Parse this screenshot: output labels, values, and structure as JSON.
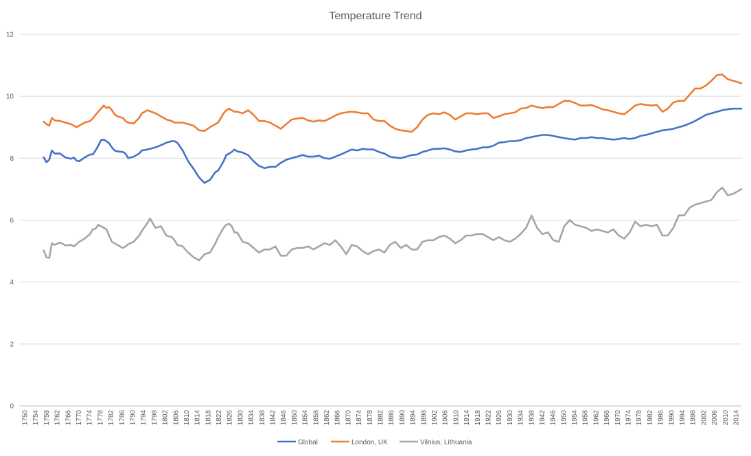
{
  "chart_data": {
    "type": "line",
    "title": "Temperature Trend",
    "xlabel": "",
    "ylabel": "",
    "ylim": [
      0,
      12
    ],
    "yticks": [
      0,
      2,
      4,
      6,
      8,
      10,
      12
    ],
    "xlim": [
      1750,
      2015
    ],
    "xtick_labels": [
      "1750",
      "1754",
      "1758",
      "1762",
      "1766",
      "1770",
      "1774",
      "1778",
      "1782",
      "1786",
      "1790",
      "1794",
      "1798",
      "1802",
      "1806",
      "1810",
      "1814",
      "1818",
      "1822",
      "1826",
      "1830",
      "1834",
      "1838",
      "1842",
      "1846",
      "1850",
      "1854",
      "1858",
      "1862",
      "1866",
      "1870",
      "1874",
      "1878",
      "1882",
      "1886",
      "1890",
      "1894",
      "1898",
      "1902",
      "1906",
      "1910",
      "1914",
      "1918",
      "1922",
      "1926",
      "1930",
      "1934",
      "1938",
      "1942",
      "1946",
      "1950",
      "1954",
      "1958",
      "1962",
      "1966",
      "1970",
      "1974",
      "1978",
      "1982",
      "1986",
      "1990",
      "1994",
      "1998",
      "2002",
      "2006",
      "2010",
      "2014"
    ],
    "grid": "horizontal",
    "legend": "bottom",
    "series": [
      {
        "name": "Global",
        "color": "#4472C4",
        "x": [
          1759,
          1760,
          1761,
          1762,
          1763,
          1765,
          1767,
          1769,
          1770,
          1771,
          1772,
          1774,
          1776,
          1777,
          1778,
          1779,
          1780,
          1781,
          1782,
          1783,
          1784,
          1785,
          1786,
          1788,
          1789,
          1790,
          1792,
          1794,
          1795,
          1797,
          1800,
          1802,
          1804,
          1806,
          1807,
          1808,
          1810,
          1812,
          1814,
          1816,
          1818,
          1820,
          1822,
          1823,
          1824,
          1825,
          1826,
          1827,
          1828,
          1829,
          1830,
          1832,
          1834,
          1836,
          1838,
          1840,
          1842,
          1844,
          1846,
          1848,
          1850,
          1852,
          1854,
          1856,
          1858,
          1860,
          1862,
          1864,
          1866,
          1868,
          1870,
          1872,
          1874,
          1876,
          1878,
          1880,
          1882,
          1884,
          1886,
          1888,
          1890,
          1892,
          1894,
          1896,
          1898,
          1900,
          1902,
          1904,
          1906,
          1908,
          1910,
          1912,
          1914,
          1916,
          1918,
          1920,
          1922,
          1924,
          1926,
          1928,
          1930,
          1932,
          1934,
          1936,
          1938,
          1940,
          1942,
          1944,
          1946,
          1948,
          1950,
          1952,
          1954,
          1956,
          1958,
          1960,
          1962,
          1964,
          1966,
          1968,
          1970,
          1972,
          1974,
          1976,
          1978,
          1980,
          1982,
          1984,
          1986,
          1988,
          1990,
          1992,
          1994,
          1996,
          1998,
          2000,
          2002,
          2004,
          2006,
          2008,
          2010,
          2012,
          2015
        ],
        "values": [
          8.03,
          7.87,
          7.95,
          8.25,
          8.15,
          8.15,
          8.02,
          7.98,
          8.02,
          7.92,
          7.9,
          8.02,
          8.12,
          8.12,
          8.25,
          8.4,
          8.58,
          8.6,
          8.55,
          8.48,
          8.35,
          8.25,
          8.22,
          8.2,
          8.15,
          8.0,
          8.05,
          8.15,
          8.25,
          8.28,
          8.35,
          8.42,
          8.5,
          8.55,
          8.55,
          8.5,
          8.25,
          7.9,
          7.65,
          7.38,
          7.2,
          7.3,
          7.55,
          7.6,
          7.75,
          7.9,
          8.1,
          8.15,
          8.2,
          8.28,
          8.22,
          8.18,
          8.1,
          7.9,
          7.75,
          7.68,
          7.72,
          7.72,
          7.85,
          7.95,
          8.0,
          8.05,
          8.1,
          8.05,
          8.05,
          8.08,
          8.0,
          7.98,
          8.05,
          8.12,
          8.2,
          8.28,
          8.25,
          8.3,
          8.28,
          8.28,
          8.2,
          8.15,
          8.05,
          8.02,
          8.0,
          8.05,
          8.1,
          8.12,
          8.2,
          8.25,
          8.3,
          8.3,
          8.32,
          8.28,
          8.22,
          8.2,
          8.25,
          8.28,
          8.3,
          8.35,
          8.35,
          8.4,
          8.5,
          8.52,
          8.55,
          8.55,
          8.58,
          8.65,
          8.68,
          8.72,
          8.75,
          8.75,
          8.72,
          8.68,
          8.65,
          8.62,
          8.6,
          8.65,
          8.65,
          8.68,
          8.65,
          8.65,
          8.62,
          8.6,
          8.62,
          8.65,
          8.62,
          8.65,
          8.72,
          8.75,
          8.8,
          8.85,
          8.9,
          8.92,
          8.95,
          9.0,
          9.05,
          9.12,
          9.2,
          9.3,
          9.4,
          9.45,
          9.5,
          9.55,
          9.58,
          9.6,
          9.6
        ]
      },
      {
        "name": "London, UK",
        "color": "#ED7D31",
        "x": [
          1759,
          1760,
          1761,
          1762,
          1763,
          1765,
          1767,
          1769,
          1770,
          1771,
          1772,
          1774,
          1776,
          1777,
          1778,
          1779,
          1780,
          1781,
          1782,
          1783,
          1784,
          1785,
          1786,
          1788,
          1789,
          1790,
          1792,
          1794,
          1795,
          1797,
          1800,
          1802,
          1804,
          1806,
          1807,
          1808,
          1810,
          1812,
          1814,
          1816,
          1818,
          1820,
          1822,
          1823,
          1824,
          1825,
          1826,
          1827,
          1828,
          1829,
          1830,
          1832,
          1834,
          1836,
          1838,
          1840,
          1842,
          1844,
          1846,
          1848,
          1850,
          1852,
          1854,
          1856,
          1858,
          1860,
          1862,
          1864,
          1866,
          1868,
          1870,
          1872,
          1874,
          1876,
          1878,
          1880,
          1882,
          1884,
          1886,
          1888,
          1890,
          1892,
          1894,
          1896,
          1898,
          1900,
          1902,
          1904,
          1906,
          1908,
          1910,
          1912,
          1914,
          1916,
          1918,
          1920,
          1922,
          1924,
          1926,
          1928,
          1930,
          1932,
          1934,
          1936,
          1938,
          1940,
          1942,
          1944,
          1946,
          1948,
          1950,
          1952,
          1954,
          1956,
          1958,
          1960,
          1962,
          1964,
          1966,
          1968,
          1970,
          1972,
          1974,
          1976,
          1978,
          1980,
          1982,
          1984,
          1986,
          1988,
          1990,
          1992,
          1994,
          1996,
          1998,
          2000,
          2002,
          2004,
          2006,
          2008,
          2010,
          2012,
          2015
        ],
        "values": [
          9.18,
          9.1,
          9.05,
          9.3,
          9.22,
          9.2,
          9.15,
          9.1,
          9.05,
          9.0,
          9.05,
          9.15,
          9.2,
          9.28,
          9.4,
          9.5,
          9.6,
          9.7,
          9.62,
          9.65,
          9.55,
          9.42,
          9.35,
          9.3,
          9.2,
          9.15,
          9.12,
          9.3,
          9.45,
          9.55,
          9.45,
          9.35,
          9.25,
          9.2,
          9.15,
          9.15,
          9.15,
          9.1,
          9.05,
          8.9,
          8.88,
          9.0,
          9.1,
          9.15,
          9.3,
          9.45,
          9.55,
          9.6,
          9.55,
          9.5,
          9.5,
          9.45,
          9.55,
          9.4,
          9.2,
          9.2,
          9.15,
          9.05,
          8.95,
          9.1,
          9.25,
          9.28,
          9.3,
          9.22,
          9.18,
          9.22,
          9.2,
          9.28,
          9.38,
          9.45,
          9.48,
          9.5,
          9.48,
          9.45,
          9.45,
          9.25,
          9.2,
          9.2,
          9.05,
          8.95,
          8.9,
          8.88,
          8.85,
          9.0,
          9.25,
          9.4,
          9.45,
          9.42,
          9.48,
          9.4,
          9.25,
          9.35,
          9.45,
          9.45,
          9.42,
          9.45,
          9.45,
          9.3,
          9.35,
          9.42,
          9.45,
          9.48,
          9.6,
          9.62,
          9.7,
          9.65,
          9.62,
          9.65,
          9.65,
          9.75,
          9.85,
          9.85,
          9.78,
          9.7,
          9.7,
          9.72,
          9.65,
          9.58,
          9.55,
          9.5,
          9.45,
          9.42,
          9.55,
          9.7,
          9.75,
          9.72,
          9.7,
          9.72,
          9.5,
          9.6,
          9.8,
          9.85,
          9.85,
          10.05,
          10.25,
          10.25,
          10.35,
          10.5,
          10.68,
          10.7,
          10.55,
          10.5,
          10.42
        ]
      },
      {
        "name": "Vilnius, Lithuania",
        "color": "#A5A5A5",
        "x": [
          1759,
          1760,
          1761,
          1762,
          1763,
          1765,
          1767,
          1769,
          1770,
          1771,
          1772,
          1774,
          1776,
          1777,
          1778,
          1779,
          1780,
          1781,
          1782,
          1783,
          1784,
          1785,
          1786,
          1788,
          1789,
          1790,
          1792,
          1794,
          1795,
          1797,
          1798,
          1800,
          1802,
          1804,
          1806,
          1807,
          1808,
          1810,
          1812,
          1814,
          1816,
          1818,
          1820,
          1822,
          1823,
          1824,
          1825,
          1826,
          1827,
          1828,
          1829,
          1830,
          1832,
          1834,
          1836,
          1838,
          1840,
          1842,
          1844,
          1846,
          1848,
          1850,
          1852,
          1854,
          1856,
          1858,
          1860,
          1862,
          1864,
          1866,
          1868,
          1870,
          1872,
          1874,
          1876,
          1878,
          1880,
          1882,
          1884,
          1886,
          1888,
          1890,
          1892,
          1894,
          1896,
          1898,
          1900,
          1902,
          1904,
          1906,
          1908,
          1910,
          1912,
          1914,
          1916,
          1918,
          1920,
          1922,
          1924,
          1926,
          1928,
          1930,
          1932,
          1934,
          1936,
          1938,
          1940,
          1942,
          1944,
          1946,
          1948,
          1950,
          1952,
          1954,
          1956,
          1958,
          1960,
          1962,
          1964,
          1966,
          1968,
          1970,
          1972,
          1974,
          1976,
          1978,
          1980,
          1982,
          1984,
          1986,
          1988,
          1990,
          1992,
          1994,
          1996,
          1998,
          2000,
          2002,
          2004,
          2006,
          2008,
          2010,
          2012,
          2015
        ],
        "values": [
          5.02,
          4.8,
          4.78,
          5.25,
          5.2,
          5.28,
          5.18,
          5.2,
          5.15,
          5.22,
          5.3,
          5.4,
          5.55,
          5.7,
          5.72,
          5.85,
          5.8,
          5.75,
          5.7,
          5.5,
          5.3,
          5.25,
          5.2,
          5.1,
          5.15,
          5.22,
          5.3,
          5.5,
          5.65,
          5.9,
          6.05,
          5.75,
          5.8,
          5.5,
          5.45,
          5.35,
          5.2,
          5.15,
          4.95,
          4.8,
          4.7,
          4.9,
          4.95,
          5.25,
          5.45,
          5.6,
          5.75,
          5.85,
          5.88,
          5.8,
          5.6,
          5.6,
          5.3,
          5.25,
          5.1,
          4.95,
          5.05,
          5.05,
          5.15,
          4.85,
          4.85,
          5.05,
          5.1,
          5.1,
          5.15,
          5.05,
          5.15,
          5.25,
          5.2,
          5.35,
          5.15,
          4.9,
          5.2,
          5.15,
          5.0,
          4.9,
          5.0,
          5.05,
          4.95,
          5.2,
          5.3,
          5.1,
          5.2,
          5.05,
          5.05,
          5.3,
          5.35,
          5.35,
          5.45,
          5.5,
          5.4,
          5.25,
          5.35,
          5.5,
          5.5,
          5.55,
          5.55,
          5.45,
          5.35,
          5.45,
          5.35,
          5.3,
          5.4,
          5.55,
          5.75,
          6.15,
          5.75,
          5.55,
          5.6,
          5.35,
          5.3,
          5.8,
          6.0,
          5.85,
          5.8,
          5.75,
          5.65,
          5.7,
          5.65,
          5.6,
          5.7,
          5.5,
          5.4,
          5.6,
          5.95,
          5.8,
          5.85,
          5.8,
          5.85,
          5.5,
          5.5,
          5.75,
          6.15,
          6.15,
          6.4,
          6.5,
          6.55,
          6.6,
          6.65,
          6.9,
          7.05,
          6.8,
          6.85,
          7.0
        ]
      }
    ]
  }
}
